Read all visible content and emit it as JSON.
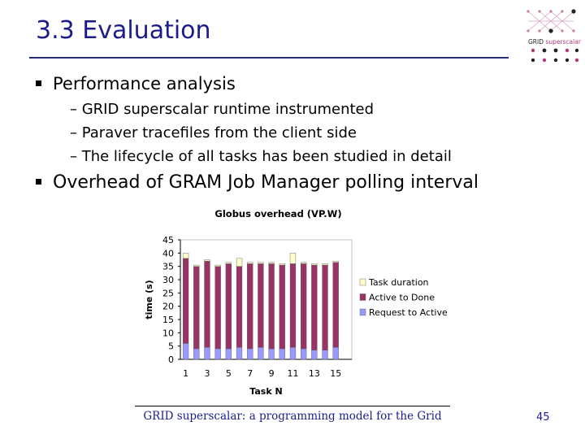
{
  "slide": {
    "title": "3.3 Evaluation",
    "bullets": [
      {
        "text": "Performance analysis",
        "subitems": [
          "– GRID superscalar runtime instrumented",
          "– Paraver tracefiles from the client side",
          "– The lifecycle of all tasks has been studied in detail"
        ]
      },
      {
        "text": "Overhead of GRAM Job Manager polling interval",
        "subitems": []
      }
    ],
    "logo_text": "GRID superscalar",
    "footer": "GRID superscalar: a programming model for the Grid",
    "page_number": "45"
  },
  "colors": {
    "title": "#1c1c8c",
    "request_to_active": "#9999ff",
    "active_to_done": "#993366",
    "task_duration": "#ffffcc"
  },
  "chart_data": {
    "type": "bar",
    "stacked": true,
    "title": "Globus overhead (VP.W)",
    "xlabel": "Task N",
    "ylabel": "time (s)",
    "ylim": [
      0,
      45
    ],
    "yticks": [
      0,
      5,
      10,
      15,
      20,
      25,
      30,
      35,
      40,
      45
    ],
    "categories": [
      "1",
      "2",
      "3",
      "4",
      "5",
      "6",
      "7",
      "8",
      "9",
      "10",
      "11",
      "12",
      "13",
      "14",
      "15",
      "16"
    ],
    "x_tick_labels": [
      "1",
      "3",
      "5",
      "7",
      "9",
      "11",
      "13",
      "15"
    ],
    "legend_position": "right",
    "grid": false,
    "series": [
      {
        "name": "Request to Active",
        "color": "#9999ff",
        "values": [
          6,
          4,
          4.5,
          4,
          4,
          4.5,
          4,
          4.5,
          4,
          4,
          4.5,
          4,
          3.5,
          3.5,
          4.5,
          0
        ]
      },
      {
        "name": "Active to Done",
        "color": "#993366",
        "values": [
          32,
          31,
          32.5,
          31,
          32,
          30.5,
          32,
          31.5,
          32,
          31.5,
          31.5,
          32,
          32,
          32,
          32,
          0
        ]
      },
      {
        "name": "Task duration",
        "color": "#ffffcc",
        "values": [
          2,
          0.5,
          0.5,
          0.5,
          0.5,
          3,
          0.5,
          0.5,
          0.5,
          0.5,
          4,
          0.5,
          0.5,
          0.5,
          0.5,
          0
        ]
      }
    ]
  }
}
